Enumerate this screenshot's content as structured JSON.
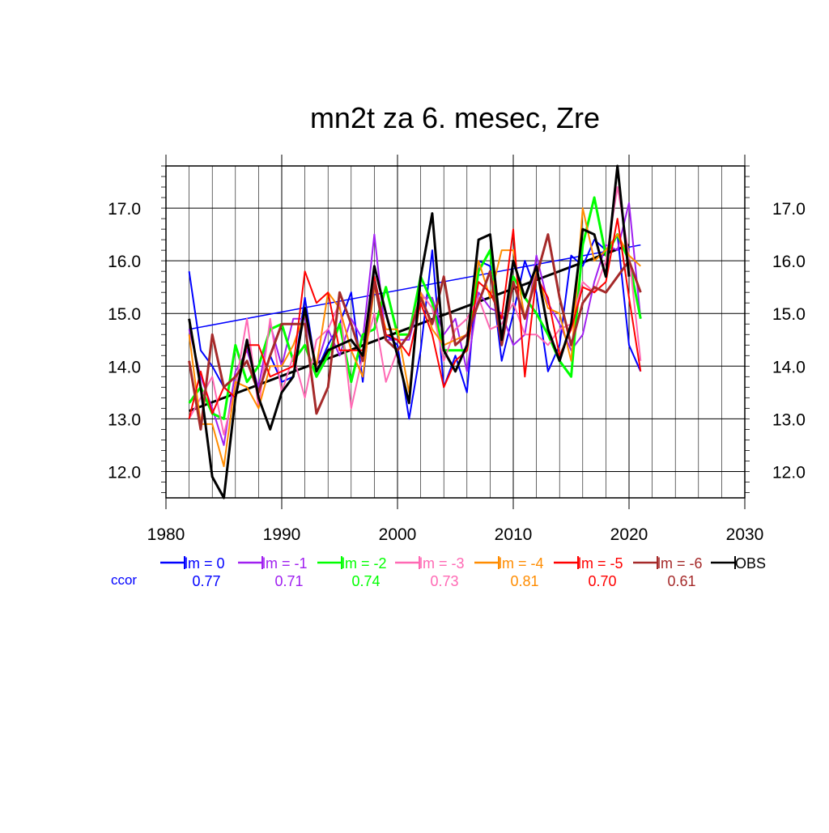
{
  "chart_data": {
    "type": "line",
    "title": "mn2t za 6. mesec, Zre",
    "xlabel": "",
    "ylabel": "",
    "xlim": [
      1980,
      2030
    ],
    "ylim": [
      11.5,
      17.8
    ],
    "x_ticks": [
      1980,
      1990,
      2000,
      2010,
      2020,
      2030
    ],
    "x_tick_labels": [
      "1980",
      "1990",
      "2000",
      "2010",
      "2020",
      "2030"
    ],
    "y_ticks": [
      12.0,
      13.0,
      14.0,
      15.0,
      16.0,
      17.0
    ],
    "y_tick_labels": [
      "12.0",
      "13.0",
      "14.0",
      "15.0",
      "16.0",
      "17.0"
    ],
    "grid": true,
    "legend_position": "bottom",
    "ccor_label": "ccor",
    "x": [
      1982,
      1983,
      1984,
      1985,
      1986,
      1987,
      1988,
      1989,
      1990,
      1991,
      1992,
      1993,
      1994,
      1995,
      1996,
      1997,
      1998,
      1999,
      2000,
      2001,
      2002,
      2003,
      2004,
      2005,
      2006,
      2007,
      2008,
      2009,
      2010,
      2011,
      2012,
      2013,
      2014,
      2015,
      2016,
      2017,
      2018,
      2019,
      2020,
      2021
    ],
    "series": [
      {
        "name": "lm = 0",
        "ccor": "0.77",
        "color": "#0000ff",
        "width": 2,
        "values": [
          15.8,
          14.3,
          14.0,
          13.6,
          13.4,
          14.4,
          13.5,
          14.2,
          13.7,
          13.8,
          15.3,
          13.9,
          14.4,
          14.8,
          15.4,
          13.7,
          15.7,
          14.6,
          14.4,
          13.0,
          14.3,
          16.2,
          13.6,
          14.2,
          13.5,
          16.0,
          15.9,
          14.1,
          15.0,
          16.0,
          15.4,
          13.9,
          14.4,
          16.1,
          15.9,
          16.4,
          16.2,
          16.5,
          14.4,
          13.9
        ]
      },
      {
        "name": "lm = -1",
        "ccor": "0.71",
        "color": "#a020f0",
        "width": 2,
        "values": [
          14.7,
          13.8,
          13.2,
          12.5,
          13.9,
          14.3,
          13.6,
          14.8,
          14.0,
          14.9,
          14.9,
          14.0,
          14.7,
          14.2,
          14.9,
          14.5,
          16.5,
          14.5,
          14.5,
          14.5,
          15.3,
          15.3,
          14.6,
          14.9,
          13.9,
          15.4,
          15.1,
          15.0,
          14.4,
          14.6,
          16.1,
          15.2,
          14.8,
          14.3,
          14.6,
          15.6,
          16.3,
          16.2,
          17.1,
          14.9
        ]
      },
      {
        "name": "lm = -2",
        "ccor": "0.74",
        "color": "#00ff00",
        "width": 3,
        "values": [
          13.3,
          13.6,
          13.1,
          13.0,
          14.4,
          13.7,
          14.0,
          14.7,
          14.8,
          14.1,
          14.4,
          13.8,
          14.2,
          14.8,
          13.7,
          14.6,
          14.7,
          15.5,
          14.6,
          14.6,
          15.7,
          15.2,
          14.3,
          14.3,
          14.3,
          15.8,
          16.2,
          14.5,
          15.7,
          15.3,
          15.0,
          14.6,
          14.1,
          13.8,
          16.3,
          17.2,
          16.1,
          16.5,
          16.0,
          14.9
        ]
      },
      {
        "name": "lm = -3",
        "ccor": "0.73",
        "color": "#ff69b4",
        "width": 2,
        "values": [
          13.0,
          13.4,
          13.8,
          12.7,
          13.6,
          14.9,
          13.2,
          14.9,
          13.5,
          14.2,
          13.4,
          14.5,
          14.7,
          15.2,
          13.2,
          14.2,
          15.0,
          13.7,
          14.3,
          14.6,
          15.4,
          15.1,
          14.1,
          14.7,
          14.9,
          15.3,
          14.7,
          14.8,
          15.2,
          14.6,
          14.6,
          14.4,
          14.7,
          14.8,
          15.6,
          15.4,
          16.0,
          17.4,
          16.1,
          14.1
        ]
      },
      {
        "name": "lm = -4",
        "ccor": "0.81",
        "color": "#ff8c00",
        "width": 2,
        "values": [
          14.6,
          12.9,
          12.9,
          12.1,
          13.7,
          13.6,
          13.2,
          14.0,
          14.0,
          14.4,
          15.0,
          14.0,
          15.4,
          15.1,
          14.3,
          13.8,
          15.5,
          14.7,
          14.7,
          13.5,
          15.4,
          14.7,
          14.4,
          14.5,
          14.6,
          16.0,
          15.3,
          16.2,
          16.2,
          14.9,
          15.8,
          15.1,
          15.0,
          14.1,
          17.0,
          16.0,
          16.2,
          16.5,
          16.1,
          15.9
        ]
      },
      {
        "name": "lm = -5",
        "ccor": "0.70",
        "color": "#ff0000",
        "width": 2,
        "values": [
          13.0,
          13.9,
          13.1,
          13.6,
          13.4,
          14.4,
          14.4,
          13.8,
          13.9,
          14.0,
          15.8,
          15.2,
          15.4,
          14.3,
          14.3,
          14.3,
          15.7,
          14.6,
          14.5,
          14.2,
          15.2,
          14.6,
          13.6,
          14.1,
          14.3,
          15.6,
          15.4,
          14.9,
          16.6,
          13.8,
          15.7,
          15.3,
          14.2,
          14.7,
          15.5,
          15.4,
          15.6,
          16.8,
          15.3,
          13.9
        ]
      },
      {
        "name": "lm = -6",
        "ccor": "0.61",
        "color": "#a52a2a",
        "width": 3,
        "values": [
          14.1,
          12.8,
          14.6,
          13.6,
          13.8,
          14.1,
          13.5,
          14.2,
          14.8,
          14.8,
          14.8,
          13.1,
          13.6,
          15.4,
          14.8,
          14.1,
          15.6,
          14.5,
          14.3,
          14.6,
          15.3,
          14.8,
          15.7,
          14.4,
          14.6,
          15.2,
          15.8,
          14.4,
          15.6,
          14.9,
          15.7,
          16.5,
          15.3,
          14.4,
          15.2,
          15.5,
          15.4,
          15.7,
          16.0,
          15.4
        ]
      },
      {
        "name": "OBS",
        "ccor": "",
        "color": "#000000",
        "width": 3,
        "values": [
          14.9,
          13.6,
          11.9,
          11.5,
          13.4,
          14.5,
          13.4,
          12.8,
          13.5,
          13.8,
          15.1,
          13.9,
          14.3,
          14.4,
          14.5,
          14.2,
          15.9,
          15.0,
          14.2,
          13.3,
          15.7,
          16.9,
          14.3,
          13.9,
          14.4,
          16.4,
          16.5,
          14.5,
          16.0,
          15.3,
          15.9,
          14.7,
          14.1,
          14.8,
          16.6,
          16.5,
          15.7,
          17.8,
          15.7,
          null
        ]
      }
    ],
    "trend_lines": [
      {
        "of": "lm = 0",
        "color": "#0000ff",
        "x": [
          1982,
          2021
        ],
        "y": [
          14.7,
          16.3
        ]
      },
      {
        "of": "OBS",
        "color": "#000000",
        "x": [
          1982,
          2020
        ],
        "y": [
          13.15,
          16.3
        ]
      }
    ]
  }
}
